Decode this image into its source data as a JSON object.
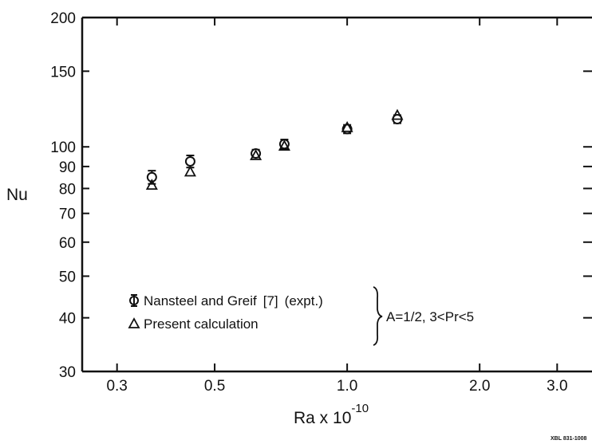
{
  "chart_data": {
    "type": "scatter",
    "xscale": "log",
    "yscale": "log",
    "xlim": [
      0.25,
      3.6
    ],
    "ylim": [
      30,
      200
    ],
    "xticks": [
      {
        "value": 0.3,
        "label": "0.3"
      },
      {
        "value": 0.5,
        "label": "0.5"
      },
      {
        "value": 1.0,
        "label": "1.0"
      },
      {
        "value": 2.0,
        "label": "2.0"
      },
      {
        "value": 3.0,
        "label": "3.0"
      }
    ],
    "yticks": [
      {
        "value": 30,
        "label": "30"
      },
      {
        "value": 40,
        "label": "40"
      },
      {
        "value": 50,
        "label": "50"
      },
      {
        "value": 60,
        "label": "60"
      },
      {
        "value": 70,
        "label": "70"
      },
      {
        "value": 80,
        "label": "80"
      },
      {
        "value": 90,
        "label": "90"
      },
      {
        "value": 100,
        "label": "100"
      },
      {
        "value": 150,
        "label": "150"
      },
      {
        "value": 200,
        "label": "200"
      }
    ],
    "ylabel": "Nu",
    "xlabel": "Ra x 10",
    "xlabel_exponent": "-10",
    "series": [
      {
        "name": "Nansteel and Greif [7] (expt.)",
        "marker": "circle-with-errorbar",
        "points": [
          {
            "x": 0.36,
            "y": 85,
            "err": 3
          },
          {
            "x": 0.44,
            "y": 92.5,
            "err": 3
          },
          {
            "x": 0.62,
            "y": 96.5,
            "err": 2
          },
          {
            "x": 0.72,
            "y": 101.5,
            "err": 2.5
          },
          {
            "x": 1.0,
            "y": 110,
            "err": 2.5
          },
          {
            "x": 1.3,
            "y": 116,
            "err": 2.5
          }
        ]
      },
      {
        "name": "Present calculation",
        "marker": "triangle",
        "points": [
          {
            "x": 0.36,
            "y": 81.5
          },
          {
            "x": 0.44,
            "y": 87.5
          },
          {
            "x": 0.62,
            "y": 95.5
          },
          {
            "x": 0.72,
            "y": 100.5
          },
          {
            "x": 1.0,
            "y": 111
          },
          {
            "x": 1.3,
            "y": 118.5
          }
        ]
      }
    ],
    "legend_placement": "bottom-left",
    "annotation": "A=1/2, 3<Pr<5",
    "grid": false
  },
  "legend": {
    "expt_label": "Nansteel and Greif",
    "expt_ref": "[7]",
    "expt_note": "(expt.)",
    "calc_label": "Present calculation"
  },
  "stamp": "XBL 831-1008"
}
